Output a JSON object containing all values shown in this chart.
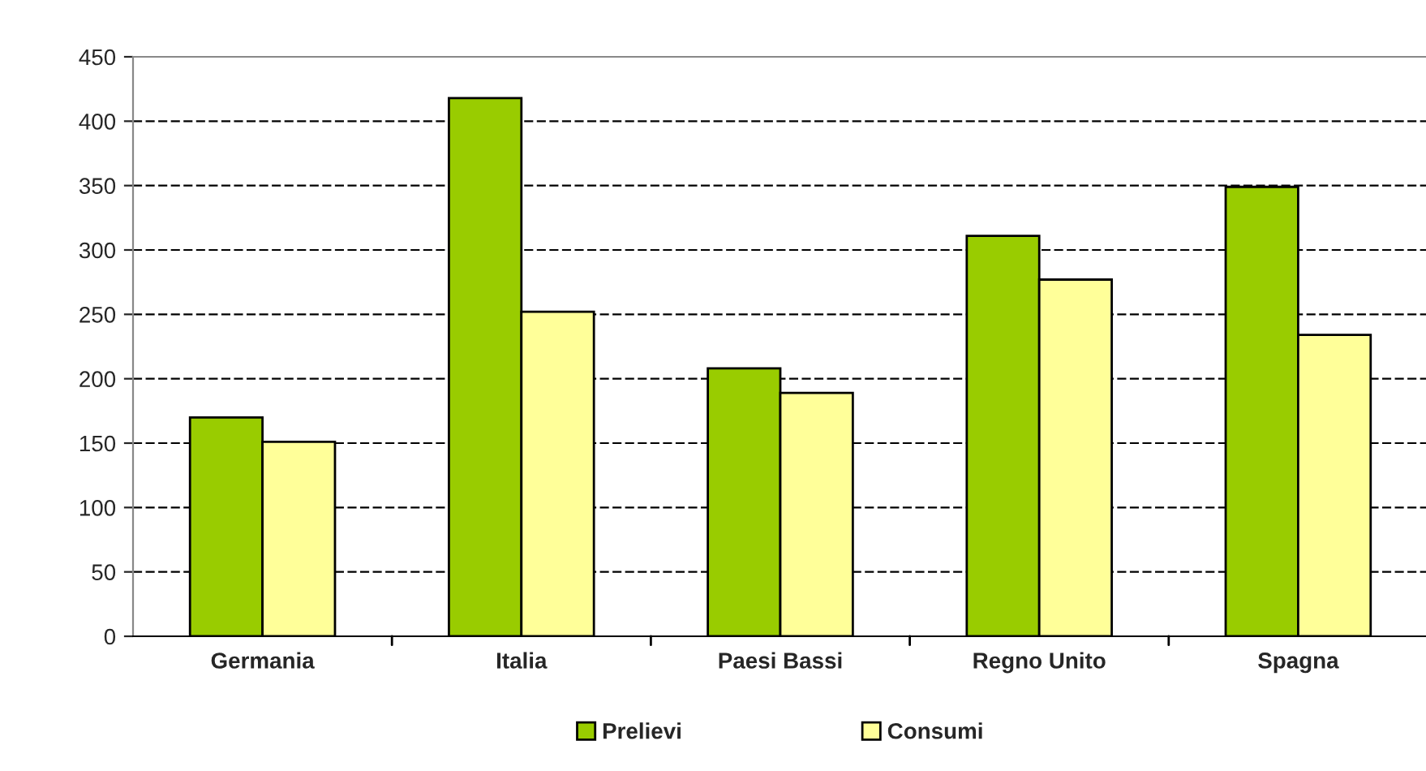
{
  "chart_data": {
    "type": "bar",
    "categories": [
      "Germania",
      "Italia",
      "Paesi Bassi",
      "Regno Unito",
      "Spagna"
    ],
    "series": [
      {
        "name": "Prelievi",
        "color": "#99cc00",
        "values": [
          170,
          418,
          208,
          311,
          349
        ]
      },
      {
        "name": "Consumi",
        "color": "#ffff99",
        "values": [
          151,
          252,
          189,
          277,
          234
        ]
      }
    ],
    "ylim": [
      0,
      450
    ],
    "yticks": [
      0,
      50,
      100,
      150,
      200,
      250,
      300,
      350,
      400,
      450
    ],
    "grid": "y",
    "line_style": "dashed",
    "legend": "bottom"
  }
}
